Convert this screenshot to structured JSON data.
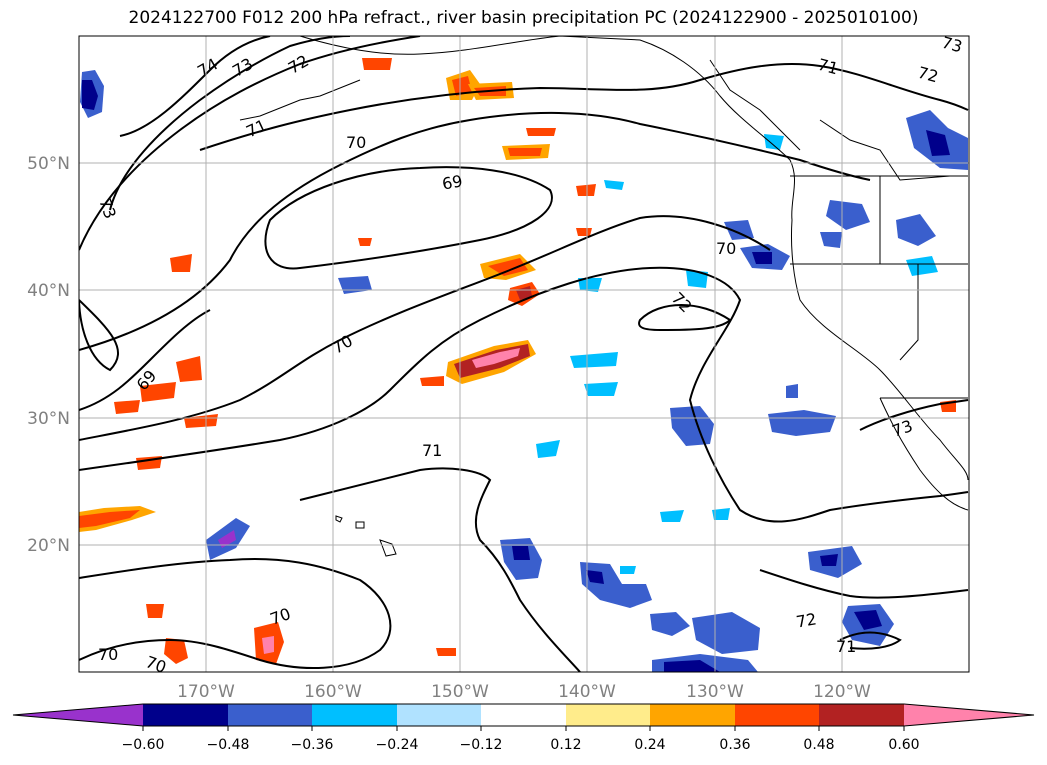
{
  "title": "2024122700 F012 200 hPa refract., river basin precipitation PC (2024122900 - 2025010100)",
  "map": {
    "lon_ticks": [
      "170°W",
      "160°W",
      "150°W",
      "140°W",
      "130°W",
      "120°W"
    ],
    "lat_ticks": [
      "50°N",
      "40°N",
      "30°N",
      "20°N"
    ],
    "contour_labels": [
      "74",
      "73",
      "72",
      "71",
      "70",
      "69",
      "73",
      "69",
      "70",
      "70",
      "71",
      "70",
      "72",
      "71",
      "72",
      "73",
      "72",
      "71",
      "70",
      "70"
    ]
  },
  "colorbar": {
    "ticks": [
      "−0.60",
      "−0.48",
      "−0.36",
      "−0.24",
      "−0.12",
      "0.12",
      "0.24",
      "0.36",
      "0.48",
      "0.60"
    ],
    "colors": [
      "#9932cc",
      "#00008b",
      "#3a5fcd",
      "#00bfff",
      "#b0e2ff",
      "#ffffff",
      "#ffec8b",
      "#ffa500",
      "#ff4500",
      "#b22222",
      "#ff82ab"
    ]
  },
  "colors": {
    "neg_strong": "#00008b",
    "neg_mid": "#3a5fcd",
    "neg_light": "#00bfff",
    "pos_light": "#ffa500",
    "pos_mid": "#ff4500",
    "pos_strong": "#b22222",
    "pos_max": "#ff82ab"
  }
}
